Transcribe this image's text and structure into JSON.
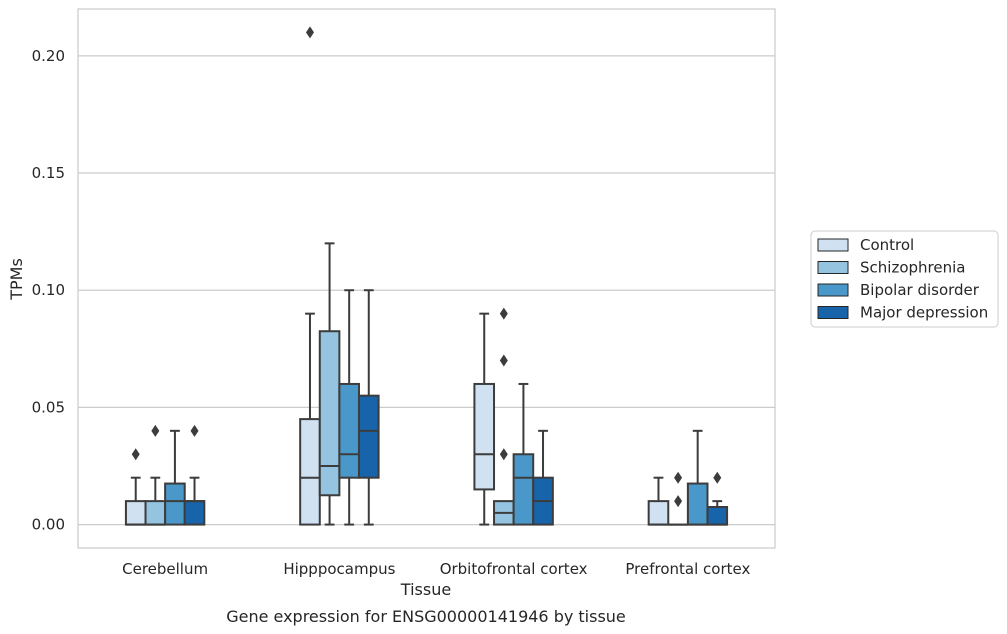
{
  "caption": "Gene expression for ENSG00000141946 by tissue",
  "chart_data": {
    "type": "box",
    "xlabel": "Tissue",
    "ylabel": "TPMs",
    "ylim": [
      -0.01,
      0.22
    ],
    "yticks": [
      0.0,
      0.05,
      0.1,
      0.15,
      0.2
    ],
    "ytick_labels": [
      "0.00",
      "0.05",
      "0.10",
      "0.15",
      "0.20"
    ],
    "grid": "horizontal",
    "legend_position": "right",
    "categories": [
      "Cerebellum",
      "Hipppocampus",
      "Orbitofrontal cortex",
      "Prefrontal cortex"
    ],
    "series": [
      {
        "name": "Control",
        "color": "#d0e1f2",
        "boxes": [
          {
            "min": 0.0,
            "q1": 0.0,
            "median": 0.0,
            "q3": 0.01,
            "max": 0.02,
            "outliers": [
              0.03
            ]
          },
          {
            "min": 0.0,
            "q1": 0.0,
            "median": 0.02,
            "q3": 0.045,
            "max": 0.09,
            "outliers": [
              0.21
            ]
          },
          {
            "min": 0.0,
            "q1": 0.015,
            "median": 0.03,
            "q3": 0.06,
            "max": 0.09,
            "outliers": []
          },
          {
            "min": 0.0,
            "q1": 0.0,
            "median": 0.0,
            "q3": 0.01,
            "max": 0.02,
            "outliers": []
          }
        ]
      },
      {
        "name": "Schizophrenia",
        "color": "#94c4df",
        "boxes": [
          {
            "min": 0.0,
            "q1": 0.0,
            "median": 0.0,
            "q3": 0.01,
            "max": 0.02,
            "outliers": [
              0.04
            ]
          },
          {
            "min": 0.0,
            "q1": 0.0125,
            "median": 0.025,
            "q3": 0.0825,
            "max": 0.12,
            "outliers": []
          },
          {
            "min": 0.0,
            "q1": 0.0,
            "median": 0.005,
            "q3": 0.01,
            "max": 0.01,
            "outliers": [
              0.03,
              0.07,
              0.09
            ]
          },
          {
            "min": 0.0,
            "q1": 0.0,
            "median": 0.0,
            "q3": 0.0,
            "max": 0.0,
            "outliers": [
              0.01,
              0.02
            ]
          }
        ]
      },
      {
        "name": "Bipolar disorder",
        "color": "#4a98c9",
        "boxes": [
          {
            "min": 0.0,
            "q1": 0.0,
            "median": 0.01,
            "q3": 0.0175,
            "max": 0.04,
            "outliers": []
          },
          {
            "min": 0.0,
            "q1": 0.02,
            "median": 0.03,
            "q3": 0.06,
            "max": 0.1,
            "outliers": []
          },
          {
            "min": 0.0,
            "q1": 0.0,
            "median": 0.02,
            "q3": 0.03,
            "max": 0.06,
            "outliers": []
          },
          {
            "min": 0.0,
            "q1": 0.0,
            "median": 0.0,
            "q3": 0.0175,
            "max": 0.04,
            "outliers": []
          }
        ]
      },
      {
        "name": "Major depression",
        "color": "#1764ab",
        "boxes": [
          {
            "min": 0.0,
            "q1": 0.0,
            "median": 0.01,
            "q3": 0.01,
            "max": 0.02,
            "outliers": [
              0.04
            ]
          },
          {
            "min": 0.0,
            "q1": 0.02,
            "median": 0.04,
            "q3": 0.055,
            "max": 0.1,
            "outliers": []
          },
          {
            "min": 0.0,
            "q1": 0.0,
            "median": 0.01,
            "q3": 0.02,
            "max": 0.04,
            "outliers": []
          },
          {
            "min": 0.0,
            "q1": 0.0,
            "median": 0.0,
            "q3": 0.0075,
            "max": 0.01,
            "outliers": [
              0.02
            ]
          }
        ]
      }
    ]
  }
}
